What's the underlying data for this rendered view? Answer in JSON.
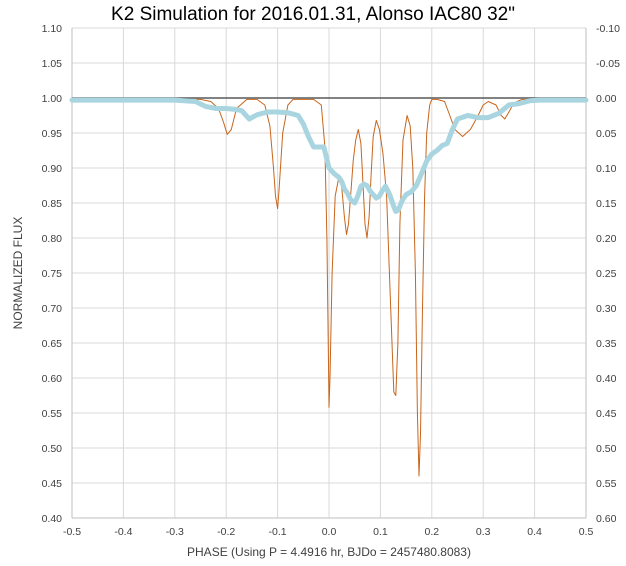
{
  "chart_data": {
    "type": "line",
    "title": "K2 Simulation for 2016.01.31, Alonso IAC80 32\"",
    "xlabel": "PHASE (Using P = 4.4916 hr, BJDo = 2457480.8083)",
    "ylabel": "NORMALIZED FLUX",
    "xlim": [
      -0.5,
      0.5
    ],
    "ylim": [
      0.4,
      1.1
    ],
    "y2lim": [
      0.6,
      -0.1
    ],
    "x_ticks": [
      "-0.5",
      "-0.4",
      "-0.3",
      "-0.2",
      "-0.1",
      "0.0",
      "0.1",
      "0.2",
      "0.3",
      "0.4",
      "0.5"
    ],
    "y_ticks": [
      "0.40",
      "0.45",
      "0.50",
      "0.55",
      "0.60",
      "0.65",
      "0.70",
      "0.75",
      "0.80",
      "0.85",
      "0.90",
      "0.95",
      "1.00",
      "1.05",
      "1.10"
    ],
    "y2_ticks": [
      "0.60",
      "0.55",
      "0.50",
      "0.45",
      "0.40",
      "0.35",
      "0.30",
      "0.25",
      "0.20",
      "0.15",
      "0.10",
      "0.05",
      "0.00",
      "-0.05",
      "-0.10"
    ],
    "grid": true,
    "colors": {
      "orange": "#c8651b",
      "lightblue": "#a9d5e0",
      "reference": "#595959",
      "grid": "#d9d9d9"
    },
    "series": [
      {
        "style": "reference-line",
        "x": [
          -0.5,
          0.5
        ],
        "y": [
          1.0,
          1.0
        ]
      },
      {
        "style": "orange-thin-line",
        "x": [
          -0.27,
          -0.25,
          -0.23,
          -0.215,
          -0.205,
          -0.198,
          -0.19,
          -0.18,
          -0.16,
          -0.14,
          -0.125,
          -0.115,
          -0.108,
          -0.104,
          -0.1,
          -0.097,
          -0.09,
          -0.08,
          -0.07,
          -0.05,
          -0.03,
          -0.015,
          -0.008,
          -0.004,
          -0.001,
          0.0,
          0.002,
          0.006,
          0.012,
          0.02,
          0.025,
          0.03,
          0.034,
          0.038,
          0.042,
          0.047,
          0.052,
          0.057,
          0.062,
          0.066,
          0.07,
          0.074,
          0.078,
          0.082,
          0.086,
          0.092,
          0.098,
          0.105,
          0.112,
          0.12,
          0.126,
          0.13,
          0.134,
          0.138,
          0.144,
          0.152,
          0.158,
          0.163,
          0.168,
          0.172,
          0.175,
          0.178,
          0.182,
          0.186,
          0.19,
          0.196,
          0.2,
          0.21,
          0.225,
          0.235,
          0.245,
          0.26,
          0.275,
          0.29,
          0.3,
          0.31,
          0.325,
          0.335,
          0.342,
          0.35,
          0.36,
          0.375,
          0.39,
          0.41
        ],
        "y": [
          0.998,
          0.998,
          0.995,
          0.985,
          0.965,
          0.948,
          0.955,
          0.985,
          0.998,
          0.998,
          0.99,
          0.96,
          0.9,
          0.86,
          0.842,
          0.87,
          0.95,
          0.99,
          0.998,
          0.998,
          0.998,
          0.99,
          0.93,
          0.8,
          0.62,
          0.558,
          0.6,
          0.75,
          0.86,
          0.89,
          0.87,
          0.83,
          0.805,
          0.82,
          0.86,
          0.91,
          0.94,
          0.955,
          0.935,
          0.88,
          0.82,
          0.8,
          0.83,
          0.89,
          0.945,
          0.968,
          0.955,
          0.92,
          0.86,
          0.7,
          0.58,
          0.575,
          0.65,
          0.82,
          0.94,
          0.975,
          0.96,
          0.9,
          0.75,
          0.55,
          0.46,
          0.52,
          0.7,
          0.86,
          0.95,
          0.99,
          0.998,
          0.998,
          0.995,
          0.975,
          0.955,
          0.945,
          0.955,
          0.975,
          0.99,
          0.995,
          0.99,
          0.975,
          0.97,
          0.98,
          0.993,
          0.998,
          0.998,
          0.998
        ]
      },
      {
        "style": "lightblue-thick-line",
        "x": [
          -0.5,
          -0.3,
          -0.26,
          -0.24,
          -0.22,
          -0.2,
          -0.185,
          -0.17,
          -0.155,
          -0.14,
          -0.12,
          -0.1,
          -0.08,
          -0.06,
          -0.05,
          -0.04,
          -0.03,
          -0.02,
          -0.01,
          -0.005,
          0.0,
          0.01,
          0.02,
          0.025,
          0.03,
          0.035,
          0.042,
          0.05,
          0.056,
          0.062,
          0.068,
          0.074,
          0.08,
          0.086,
          0.092,
          0.098,
          0.104,
          0.11,
          0.118,
          0.126,
          0.13,
          0.135,
          0.142,
          0.15,
          0.16,
          0.17,
          0.18,
          0.19,
          0.2,
          0.21,
          0.22,
          0.23,
          0.24,
          0.25,
          0.27,
          0.29,
          0.31,
          0.33,
          0.35,
          0.37,
          0.39,
          0.41,
          0.45,
          0.5
        ],
        "y": [
          0.997,
          0.997,
          0.995,
          0.988,
          0.985,
          0.985,
          0.984,
          0.982,
          0.97,
          0.976,
          0.98,
          0.98,
          0.979,
          0.975,
          0.963,
          0.945,
          0.93,
          0.93,
          0.93,
          0.915,
          0.9,
          0.892,
          0.886,
          0.88,
          0.87,
          0.865,
          0.855,
          0.85,
          0.86,
          0.874,
          0.877,
          0.875,
          0.867,
          0.862,
          0.857,
          0.86,
          0.868,
          0.874,
          0.862,
          0.845,
          0.838,
          0.84,
          0.853,
          0.862,
          0.866,
          0.875,
          0.892,
          0.91,
          0.92,
          0.925,
          0.932,
          0.935,
          0.955,
          0.97,
          0.975,
          0.972,
          0.972,
          0.978,
          0.99,
          0.992,
          0.996,
          0.997,
          0.997,
          0.997
        ]
      }
    ]
  }
}
